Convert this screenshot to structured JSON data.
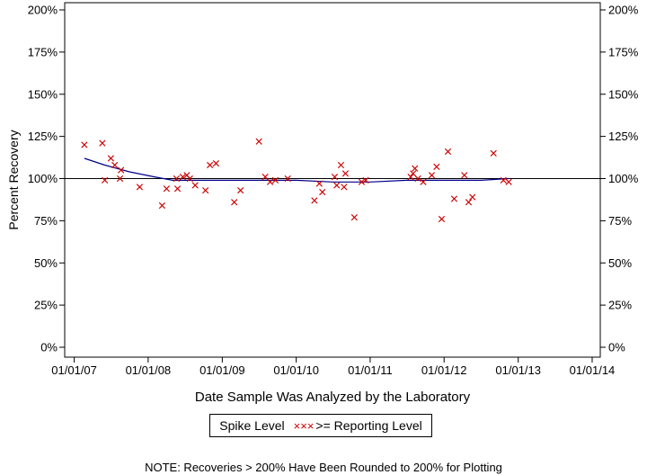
{
  "chart_data": {
    "type": "scatter",
    "xlabel": "Date Sample Was Analyzed by the Laboratory",
    "ylabel": "Percent Recovery",
    "x_ticks": [
      "01/01/07",
      "01/01/08",
      "01/01/09",
      "01/01/10",
      "01/01/11",
      "01/01/12",
      "01/01/13",
      "01/01/14"
    ],
    "y_ticks": [
      "0%",
      "25%",
      "50%",
      "75%",
      "100%",
      "125%",
      "150%",
      "175%",
      "200%"
    ],
    "ylim": [
      0,
      200
    ],
    "xlim": [
      "2006-11-15",
      "2014-02-10"
    ],
    "reference_line": 100,
    "grid": false,
    "legend": {
      "position": "bottom-center",
      "entries": [
        "Spike Level",
        ">= Reporting Level"
      ],
      "marker": "×××"
    },
    "series": [
      {
        "name": ">= Reporting Level",
        "color": "#cc0000",
        "marker": "x",
        "points": [
          {
            "x": "2007-02-20",
            "y": 120
          },
          {
            "x": "2007-05-20",
            "y": 121
          },
          {
            "x": "2007-06-01",
            "y": 99
          },
          {
            "x": "2007-07-01",
            "y": 112
          },
          {
            "x": "2007-07-20",
            "y": 108
          },
          {
            "x": "2007-08-15",
            "y": 100
          },
          {
            "x": "2007-08-20",
            "y": 105
          },
          {
            "x": "2007-11-20",
            "y": 95
          },
          {
            "x": "2008-03-10",
            "y": 84
          },
          {
            "x": "2008-04-01",
            "y": 94
          },
          {
            "x": "2008-05-20",
            "y": 100
          },
          {
            "x": "2008-05-25",
            "y": 94
          },
          {
            "x": "2008-06-20",
            "y": 101
          },
          {
            "x": "2008-07-10",
            "y": 102
          },
          {
            "x": "2008-07-25",
            "y": 100
          },
          {
            "x": "2008-08-20",
            "y": 96
          },
          {
            "x": "2008-10-10",
            "y": 93
          },
          {
            "x": "2008-11-01",
            "y": 108
          },
          {
            "x": "2008-12-01",
            "y": 109
          },
          {
            "x": "2009-03-01",
            "y": 86
          },
          {
            "x": "2009-04-01",
            "y": 93
          },
          {
            "x": "2009-07-01",
            "y": 122
          },
          {
            "x": "2009-08-01",
            "y": 101
          },
          {
            "x": "2009-08-25",
            "y": 98
          },
          {
            "x": "2009-09-20",
            "y": 99
          },
          {
            "x": "2009-11-20",
            "y": 100
          },
          {
            "x": "2010-04-01",
            "y": 87
          },
          {
            "x": "2010-04-25",
            "y": 97
          },
          {
            "x": "2010-05-10",
            "y": 92
          },
          {
            "x": "2010-07-10",
            "y": 101
          },
          {
            "x": "2010-07-20",
            "y": 96
          },
          {
            "x": "2010-08-10",
            "y": 108
          },
          {
            "x": "2010-08-25",
            "y": 95
          },
          {
            "x": "2010-09-01",
            "y": 103
          },
          {
            "x": "2010-10-15",
            "y": 77
          },
          {
            "x": "2010-11-20",
            "y": 98
          },
          {
            "x": "2010-12-10",
            "y": 99
          },
          {
            "x": "2011-07-20",
            "y": 101
          },
          {
            "x": "2011-08-01",
            "y": 103
          },
          {
            "x": "2011-08-10",
            "y": 106
          },
          {
            "x": "2011-08-25",
            "y": 100
          },
          {
            "x": "2011-09-20",
            "y": 98
          },
          {
            "x": "2011-11-01",
            "y": 102
          },
          {
            "x": "2011-11-25",
            "y": 107
          },
          {
            "x": "2011-12-20",
            "y": 76
          },
          {
            "x": "2012-01-20",
            "y": 116
          },
          {
            "x": "2012-02-20",
            "y": 88
          },
          {
            "x": "2012-04-10",
            "y": 102
          },
          {
            "x": "2012-05-01",
            "y": 86
          },
          {
            "x": "2012-05-20",
            "y": 89
          },
          {
            "x": "2012-09-01",
            "y": 115
          },
          {
            "x": "2012-10-20",
            "y": 99
          },
          {
            "x": "2012-11-15",
            "y": 98
          }
        ]
      },
      {
        "name": "Spike Level",
        "color": "#00008b",
        "type": "line",
        "points": [
          {
            "x": "2007-02-20",
            "y": 112
          },
          {
            "x": "2007-06-01",
            "y": 108
          },
          {
            "x": "2007-10-01",
            "y": 104
          },
          {
            "x": "2008-02-01",
            "y": 101
          },
          {
            "x": "2008-05-01",
            "y": 99
          },
          {
            "x": "2009-01-01",
            "y": 99
          },
          {
            "x": "2009-09-01",
            "y": 99
          },
          {
            "x": "2010-01-01",
            "y": 99
          },
          {
            "x": "2010-07-01",
            "y": 98
          },
          {
            "x": "2011-01-01",
            "y": 98
          },
          {
            "x": "2011-07-01",
            "y": 99
          },
          {
            "x": "2012-01-01",
            "y": 99
          },
          {
            "x": "2012-07-01",
            "y": 99
          },
          {
            "x": "2012-11-15",
            "y": 100
          }
        ]
      }
    ]
  },
  "legend": {
    "spike_label": "Spike Level",
    "marker_symbol": "×××",
    "reporting_label": ">= Reporting Level"
  },
  "note": "NOTE: Recoveries > 200% Have Been Rounded to 200% for Plotting"
}
